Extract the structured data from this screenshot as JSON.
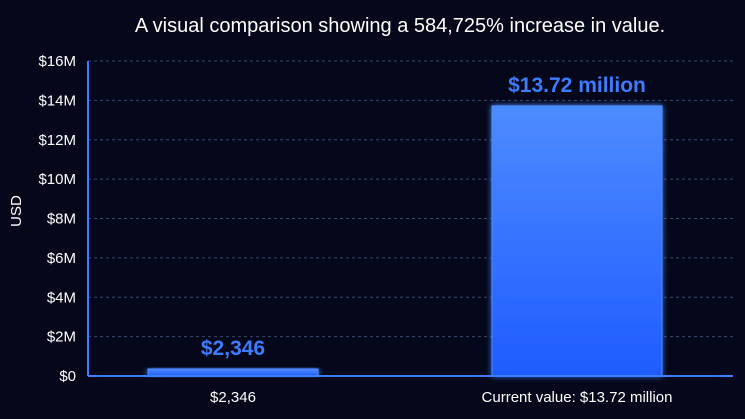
{
  "chart_data": {
    "type": "bar",
    "title": "A visual comparison showing a 584,725% increase in value.",
    "xlabel": "",
    "ylabel": "USD",
    "categories": [
      "$2,346",
      "Current value: $13.72 million"
    ],
    "values": [
      2346,
      13720000
    ],
    "data_labels": [
      "$2,346",
      "$13.72 million"
    ],
    "ylim": [
      0,
      16000000
    ],
    "yticks": [
      0,
      2000000,
      4000000,
      6000000,
      8000000,
      10000000,
      12000000,
      14000000,
      16000000
    ],
    "ytick_labels": [
      "$0",
      "$2M",
      "$4M",
      "$6M",
      "$8M",
      "$10M",
      "$12M",
      "$14M",
      "$16M"
    ],
    "grid": true,
    "colors": {
      "background": "#05081a",
      "bar": "#1f5cff",
      "bar_highlight": "#4d8bff",
      "label": "#3d7bff",
      "axis": "#3f7dff"
    }
  }
}
